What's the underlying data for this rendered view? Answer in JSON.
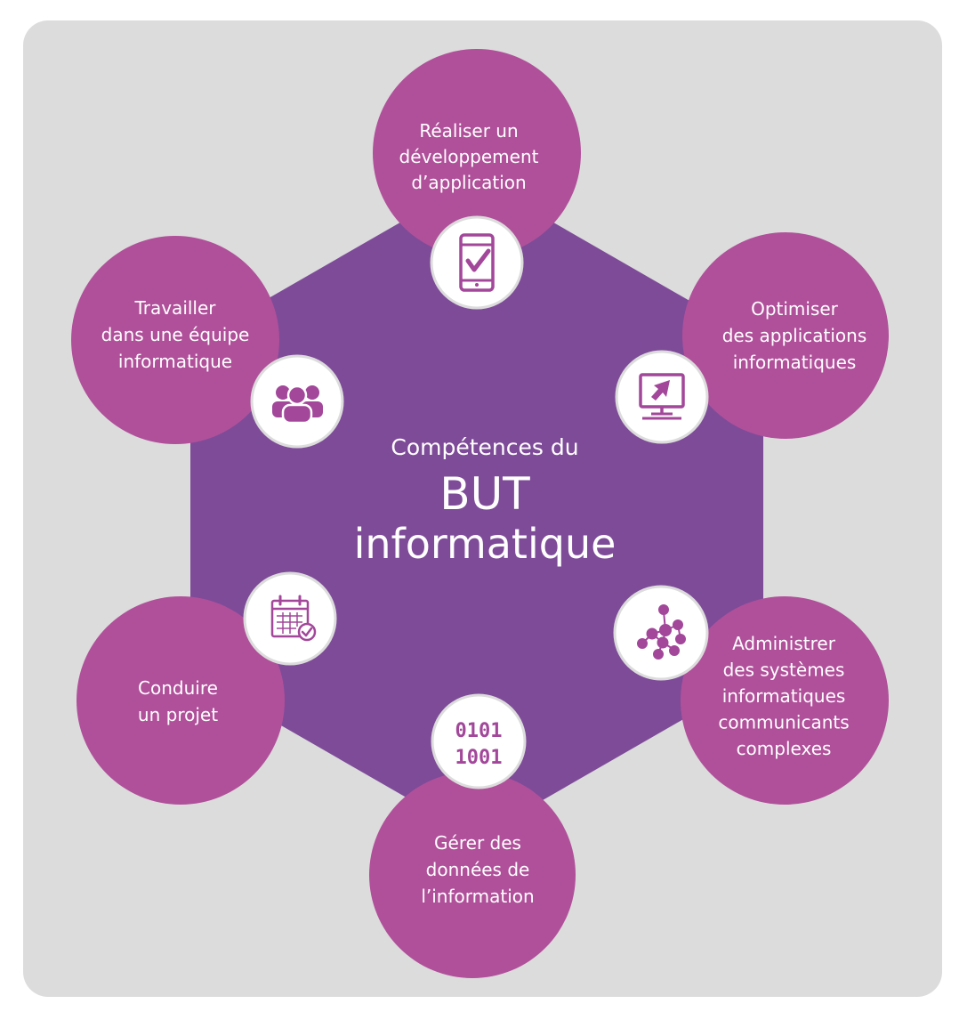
{
  "center": {
    "line1": "Compétences du",
    "line2": "BUT",
    "line3": "informatique"
  },
  "competences": [
    {
      "id": "realiser",
      "icon": "mobile-check-icon",
      "lines": [
        "Réaliser un",
        "développement",
        "d’application"
      ]
    },
    {
      "id": "optimiser",
      "icon": "monitor-cursor-icon",
      "lines": [
        "Optimiser",
        "des applications",
        "informatiques"
      ]
    },
    {
      "id": "administrer",
      "icon": "network-icon",
      "lines": [
        "Administrer",
        "des systèmes",
        "informatiques",
        "communicants",
        "complexes"
      ]
    },
    {
      "id": "gerer",
      "icon": "binary-icon",
      "lines": [
        "Gérer des",
        "données de",
        "l’information"
      ]
    },
    {
      "id": "conduire",
      "icon": "calendar-check-icon",
      "lines": [
        "Conduire",
        "un projet"
      ]
    },
    {
      "id": "travailler",
      "icon": "team-icon",
      "lines": [
        "Travailler",
        "dans une équipe",
        "informatique"
      ]
    }
  ],
  "binary_icon_text": [
    "0101",
    "1001"
  ],
  "colors": {
    "panel": "#dcdcdc",
    "hexagon": "#7e4b98",
    "circle": "#b0509a",
    "icon_stroke": "#a2479a",
    "text": "#ffffff"
  }
}
